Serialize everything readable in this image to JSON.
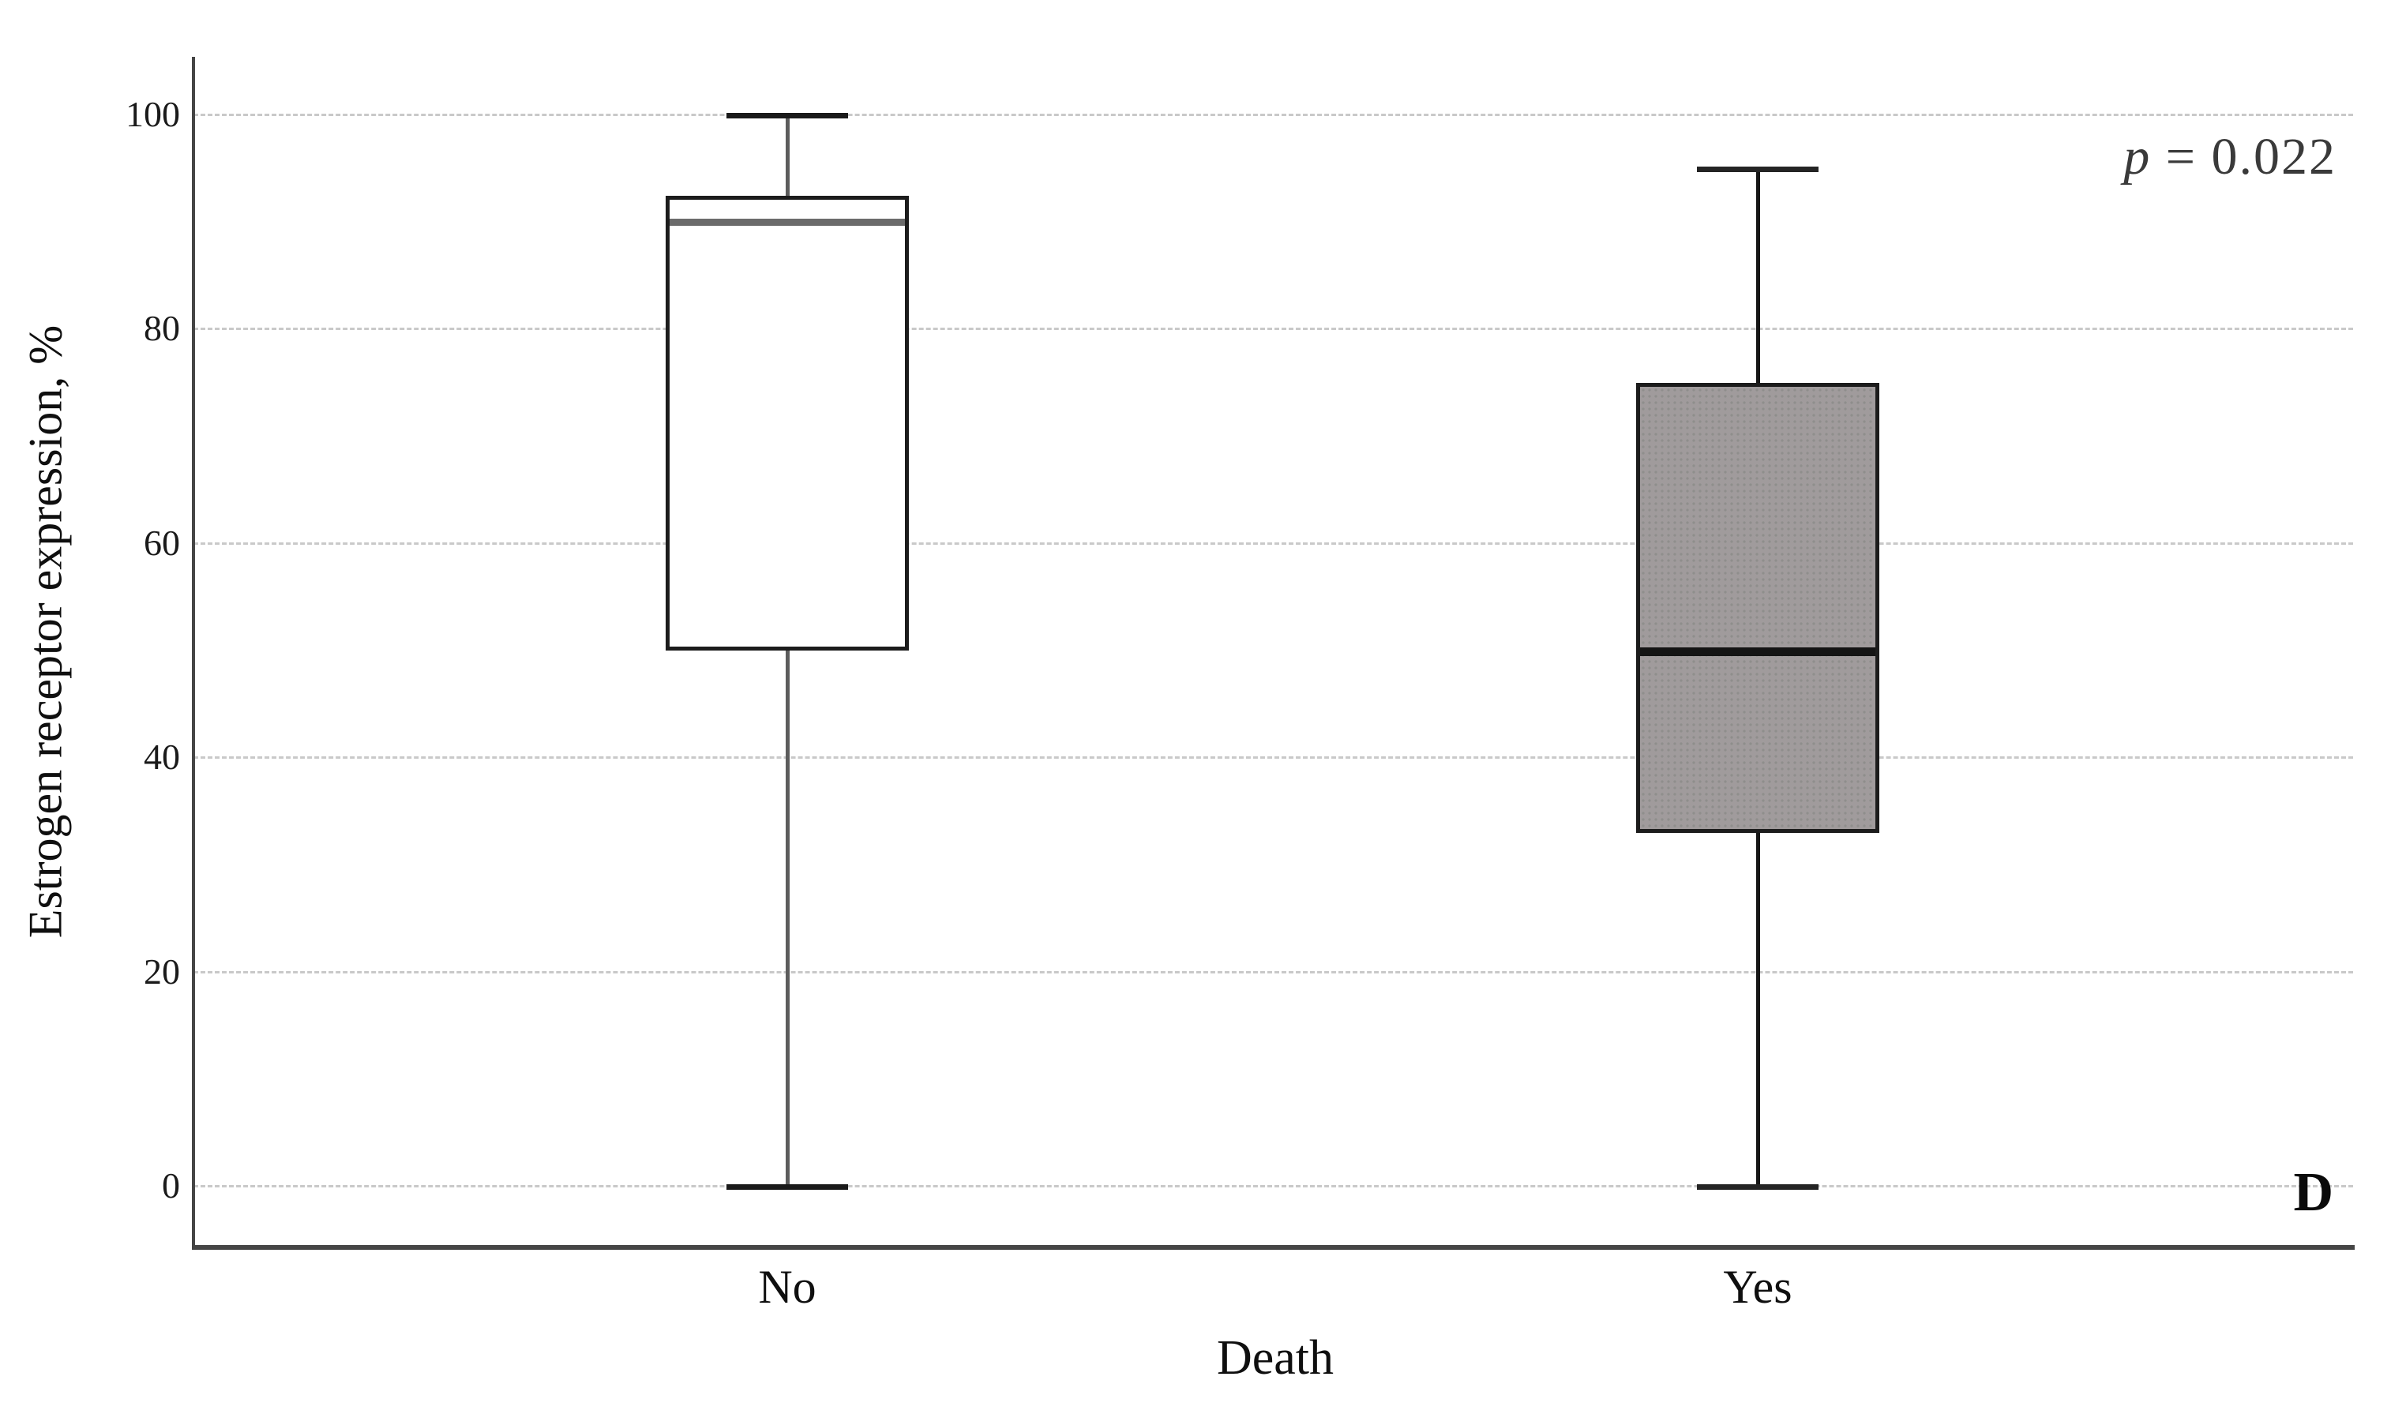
{
  "annotations": {
    "p_symbol": "p",
    "p_rest": " = 0.022",
    "p_full": "p = 0.022",
    "panel": "D"
  },
  "colors": {
    "gridline": "#c9c9c9",
    "axis": "#454545",
    "box_border": "#1c1c1c",
    "text": "#111111",
    "p_text": "#3a3a3a",
    "no_fill": "#ffffff",
    "yes_fill": "#a09b9c"
  },
  "chart_data": {
    "type": "boxplot",
    "title": "",
    "xlabel": "Death",
    "ylabel": "Estrogen receptor expression, %",
    "ylim": [
      0,
      100
    ],
    "yticks": [
      0,
      20,
      40,
      60,
      80,
      100
    ],
    "categories": [
      "No",
      "Yes"
    ],
    "grid": "horizontal-dashed-light",
    "legend": false,
    "annotation_p_value": "p = 0.022",
    "panel_letter": "D",
    "series": [
      {
        "category": "No",
        "whisker_low": 0,
        "q1": 50,
        "median": 90,
        "q3": 92.5,
        "whisker_high": 100,
        "box_fill": "#ffffff",
        "box_texture": "none",
        "median_color": "#6b6b6b",
        "whisker_color": "#5c5c5c",
        "cap_color": "#1a1a1a"
      },
      {
        "category": "Yes",
        "whisker_low": 0,
        "q1": 33,
        "median": 50,
        "q3": 75,
        "whisker_high": 95,
        "box_fill": "#a09b9c",
        "box_texture": "dots",
        "median_color": "#141414",
        "whisker_color": "#161616",
        "cap_color": "#242424"
      }
    ]
  }
}
